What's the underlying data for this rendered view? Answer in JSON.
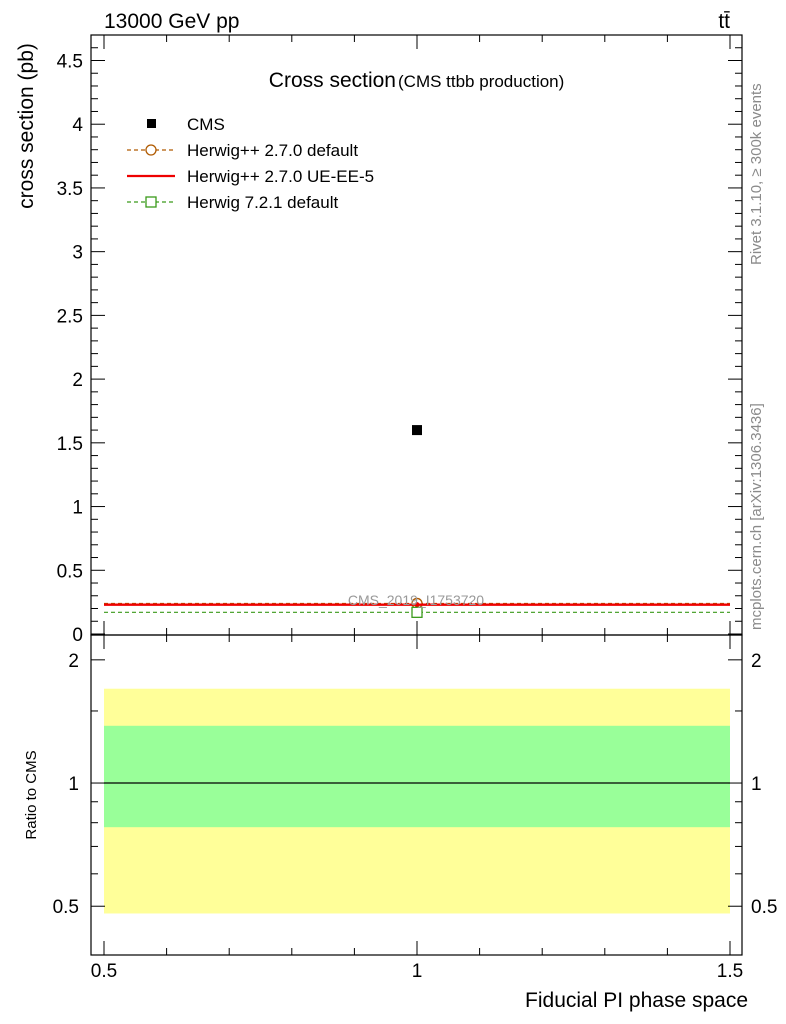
{
  "header": {
    "energy_label": "13000 GeV pp",
    "process_label": "tt̄"
  },
  "side_labels": {
    "rivet": "Rivet 3.1.10, ≥ 300k events",
    "mcplots": "mcplots.cern.ch [arXiv:1306.3436]"
  },
  "chart_data": [
    {
      "type": "scatter",
      "panel": "main",
      "title": "Cross section",
      "subtitle": "(CMS ttbb production)",
      "ylabel": "cross section (pb)",
      "xlabel": "",
      "xlim": [
        0.5,
        1.5
      ],
      "ylim": [
        0,
        4.7
      ],
      "y_ticks": [
        0,
        0.5,
        1,
        1.5,
        2,
        2.5,
        3,
        3.5,
        4,
        4.5
      ],
      "y_tick_labels": [
        "0",
        "0.5",
        "1",
        "1.5",
        "2",
        "2.5",
        "3",
        "3.5",
        "4",
        "4.5"
      ],
      "watermark": "CMS_2019_I1753720",
      "legend_position": "top-left",
      "series": [
        {
          "name": "CMS",
          "kind": "data",
          "marker": "filled-square",
          "color": "#000000",
          "x": [
            1.0
          ],
          "values": [
            1.6
          ]
        },
        {
          "name": "Herwig++ 2.7.0 default",
          "kind": "mc",
          "marker": "open-circle",
          "line": "dashed",
          "color": "#b05a00",
          "x_range": [
            0.5,
            1.5
          ],
          "values": [
            0.24
          ]
        },
        {
          "name": "Herwig++ 2.7.0 UE-EE-5",
          "kind": "mc",
          "marker": "none",
          "line": "solid",
          "color": "#ee0000",
          "x_range": [
            0.5,
            1.5
          ],
          "values": [
            0.23
          ]
        },
        {
          "name": "Herwig 7.2.1 default",
          "kind": "mc",
          "marker": "open-square",
          "line": "dashed",
          "color": "#3a9a1a",
          "x_range": [
            0.5,
            1.5
          ],
          "values": [
            0.17
          ]
        }
      ]
    },
    {
      "type": "area",
      "panel": "ratio",
      "ylabel": "Ratio to CMS",
      "xlabel": "Fiducial PI phase space",
      "xlim": [
        0.5,
        1.5
      ],
      "ylim": [
        0.38,
        2.3
      ],
      "scale": "log",
      "y_ticks": [
        0.5,
        1,
        2
      ],
      "y_tick_labels": [
        "0.5",
        "1",
        "2"
      ],
      "x_ticks": [
        0.5,
        1,
        1.5
      ],
      "x_tick_labels": [
        "0.5",
        "1",
        "1.5"
      ],
      "reference": 1.0,
      "bands": [
        {
          "name": "total uncertainty",
          "color": "#ffff99",
          "low": 0.48,
          "high": 1.7
        },
        {
          "name": "stat uncertainty",
          "color": "#99ff99",
          "low": 0.78,
          "high": 1.38
        }
      ]
    }
  ]
}
